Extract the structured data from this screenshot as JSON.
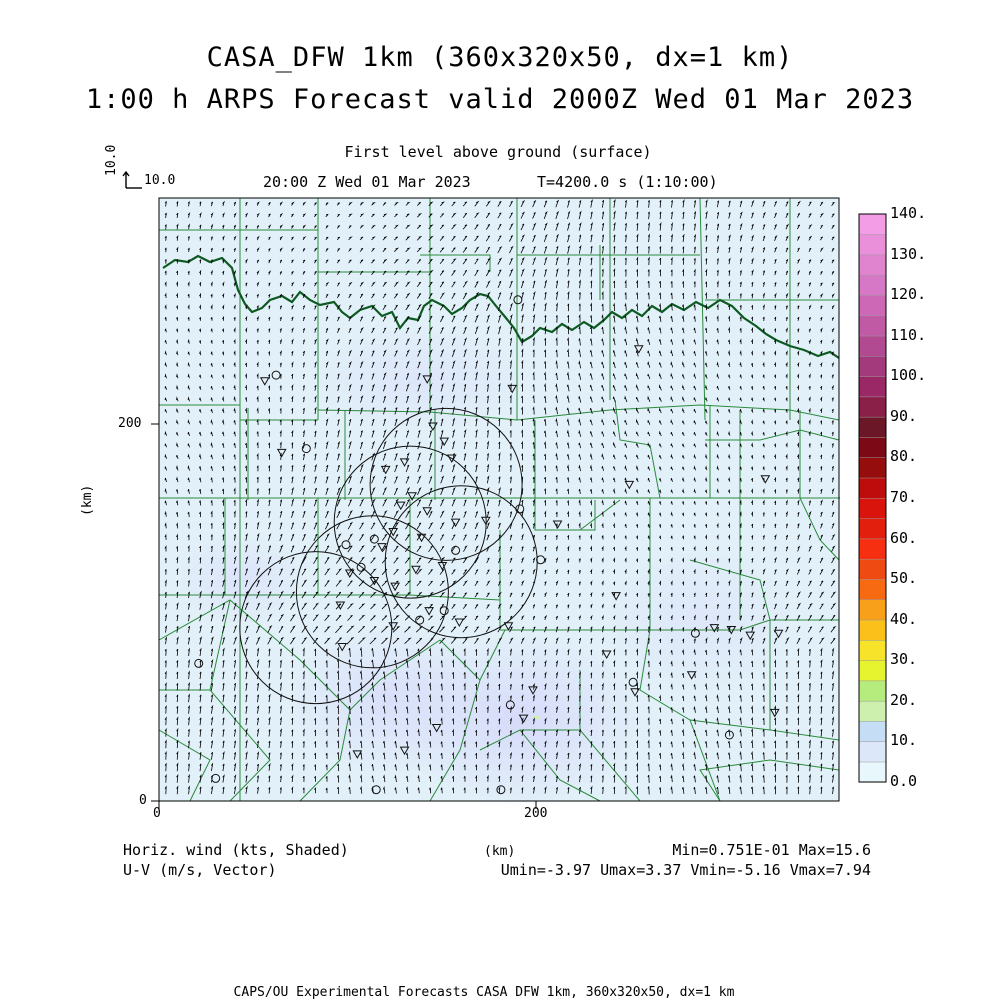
{
  "title_line1": "CASA_DFW 1km (360x320x50, dx=1 km)",
  "title_line2": "1:00 h ARPS Forecast valid 2000Z Wed 01 Mar 2023",
  "level_label": "First level above ground (surface)",
  "time_label": "20:00 Z Wed 01 Mar 2023",
  "time_step_label": "T=4200.0 s (1:10:00)",
  "vector_ref": {
    "vertical": "10.0",
    "horizontal": "10.0"
  },
  "axes": {
    "x_unit": "(km)",
    "y_unit": "(km)",
    "x_ticks": [
      "0",
      "200"
    ],
    "y_ticks": [
      "0",
      "200"
    ],
    "x_range": [
      0,
      360
    ],
    "y_range": [
      0,
      320
    ]
  },
  "colorbar": {
    "labels": [
      "0.0",
      "10.",
      "20.",
      "30.",
      "40.",
      "50.",
      "60.",
      "70.",
      "80.",
      "90.",
      "100.",
      "110.",
      "120.",
      "130.",
      "140."
    ],
    "colors": [
      "#e8f7fb",
      "#dce7f9",
      "#c6ddf6",
      "#cdf0ae",
      "#b6ec7e",
      "#e6f430",
      "#f6e32a",
      "#fcc01a",
      "#f9a01a",
      "#f86a12",
      "#ee4a12",
      "#f62f10",
      "#e21e0c",
      "#d8140c",
      "#be0c0c",
      "#960d0d",
      "#7c0a16",
      "#6b1727",
      "#8a2048",
      "#9b2866",
      "#a33a7c",
      "#b24a92",
      "#c05aa5",
      "#cd68b7",
      "#d778c6",
      "#e084d0",
      "#ea90da",
      "#f29de6"
    ]
  },
  "field_info": {
    "left_line1": "Horiz. wind (kts, Shaded)",
    "left_line2": "U-V (m/s, Vector)",
    "center_unit": "(km)",
    "right_line1": "Min=0.751E-01 Max=15.6",
    "right_line2": "Umin=-3.97 Umax=3.37 Vmin=-5.16 Vmax=7.94"
  },
  "footer": "CAPS/OU Experimental Forecasts  CASA DFW 1km, 360x320x50, dx=1 km",
  "chart_data": {
    "type": "heatmap",
    "field": "Horizontal wind speed (kts), shaded; U-V wind vectors (m/s)",
    "min": 0.0751,
    "max": 15.6,
    "u_range": [
      -3.97,
      3.37
    ],
    "v_range": [
      -5.16,
      7.94
    ],
    "radar_rings": [
      {
        "x": 152,
        "y": 168
      },
      {
        "x": 133,
        "y": 148
      },
      {
        "x": 160,
        "y": 127
      },
      {
        "x": 113,
        "y": 111
      },
      {
        "x": 83,
        "y": 92
      }
    ],
    "stations_triangle": [
      [
        145,
        199
      ],
      [
        151,
        191
      ],
      [
        155,
        182
      ],
      [
        130,
        180
      ],
      [
        120,
        176
      ],
      [
        134,
        162
      ],
      [
        128,
        157
      ],
      [
        142,
        154
      ],
      [
        124,
        143
      ],
      [
        139,
        140
      ],
      [
        157,
        148
      ],
      [
        173,
        149
      ],
      [
        118,
        135
      ],
      [
        136,
        123
      ],
      [
        125,
        114
      ],
      [
        150,
        125
      ],
      [
        114,
        117
      ],
      [
        101,
        121
      ],
      [
        143,
        101
      ],
      [
        124,
        93
      ],
      [
        159,
        95
      ],
      [
        96,
        104
      ],
      [
        97,
        82
      ],
      [
        211,
        147
      ],
      [
        249,
        168
      ],
      [
        242,
        109
      ],
      [
        294,
        92
      ],
      [
        303,
        91
      ],
      [
        313,
        88
      ],
      [
        328,
        89
      ],
      [
        237,
        78
      ],
      [
        185,
        93
      ],
      [
        198,
        59
      ],
      [
        252,
        58
      ],
      [
        282,
        67
      ],
      [
        326,
        47
      ],
      [
        193,
        44
      ],
      [
        147,
        39
      ],
      [
        130,
        27
      ],
      [
        105,
        25
      ],
      [
        187,
        219
      ],
      [
        142,
        224
      ],
      [
        56,
        223
      ],
      [
        254,
        240
      ],
      [
        321,
        171
      ],
      [
        65,
        185
      ]
    ],
    "stations_circle": [
      [
        190,
        266
      ],
      [
        62,
        226
      ],
      [
        78,
        187
      ],
      [
        191,
        155
      ],
      [
        114,
        139
      ],
      [
        99,
        136
      ],
      [
        157,
        133
      ],
      [
        107,
        124
      ],
      [
        202,
        128
      ],
      [
        151,
        101
      ],
      [
        138,
        96
      ],
      [
        284,
        89
      ],
      [
        21,
        73
      ],
      [
        186,
        51
      ],
      [
        251,
        63
      ],
      [
        30,
        12
      ],
      [
        115,
        6
      ],
      [
        181,
        6
      ],
      [
        302,
        35
      ]
    ]
  }
}
